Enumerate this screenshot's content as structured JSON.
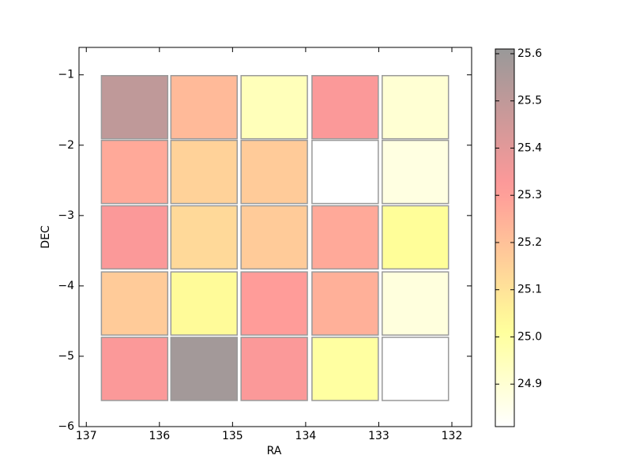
{
  "chart_data": {
    "type": "heatmap",
    "x_label": "RA",
    "y_label": "DEC",
    "x": [
      136.34,
      135.39,
      134.43,
      133.46,
      132.5
    ],
    "y": [
      -1.46,
      -2.38,
      -3.31,
      -4.25,
      -5.18
    ],
    "values": [
      [
        25.5,
        25.22,
        24.95,
        25.33,
        24.9
      ],
      [
        25.27,
        25.15,
        25.17,
        24.81,
        24.87
      ],
      [
        25.33,
        25.13,
        25.17,
        25.27,
        25.02
      ],
      [
        25.17,
        25.03,
        25.31,
        25.25,
        24.88
      ],
      [
        25.33,
        25.58,
        25.33,
        25.0,
        24.81
      ]
    ],
    "colormap": "hot_r",
    "alpha": 0.4,
    "xlim": [
      137.1,
      131.73
    ],
    "xticks": [
      137,
      136,
      135,
      134,
      133,
      132
    ],
    "ylim": [
      -6,
      -0.61
    ],
    "yticks": [
      {
        "value": -1,
        "label": "−1"
      },
      {
        "value": -2,
        "label": "−2"
      },
      {
        "value": -3,
        "label": "−3"
      },
      {
        "value": -4,
        "label": "−4"
      },
      {
        "value": -5,
        "label": "−5"
      },
      {
        "value": -6,
        "label": "−6"
      }
    ],
    "clim": [
      24.81,
      25.61
    ],
    "cticks": [
      24.9,
      {
        "value": 25.0,
        "label": "25.0"
      },
      25.1,
      25.2,
      25.3,
      25.4,
      25.5,
      25.6
    ]
  }
}
